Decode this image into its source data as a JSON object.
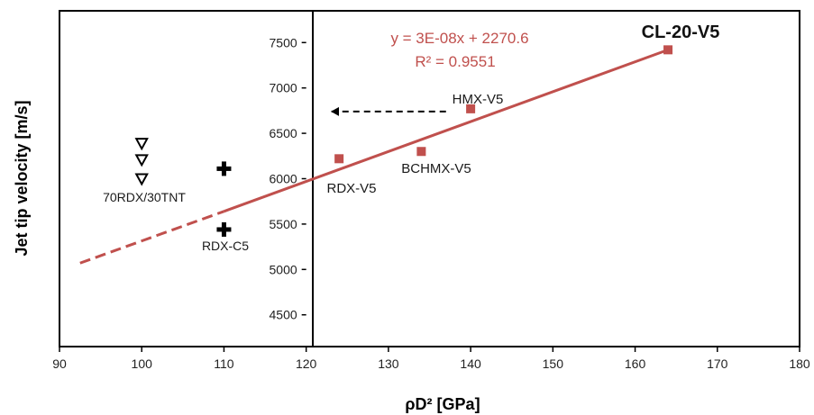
{
  "chart_data": {
    "type": "scatter",
    "title": "",
    "xlabel": "ρD² [GPa]",
    "ylabel": "Jet tip velocity [m/s]",
    "xlim": [
      90,
      180
    ],
    "ylim": [
      4150,
      7850
    ],
    "x_ticks": [
      "90",
      "100",
      "110",
      "120",
      "130",
      "140",
      "150",
      "160",
      "170",
      "180"
    ],
    "y_ticks": [
      "4500",
      "5000",
      "5500",
      "6000",
      "6500",
      "7000",
      "7500"
    ],
    "grid": false,
    "series": [
      {
        "marker": "square",
        "color": "#c0504d",
        "points": [
          {
            "label": "RDX-V5",
            "x": 124,
            "y": 6220
          },
          {
            "label": "BCHMX-V5",
            "x": 134,
            "y": 6300
          },
          {
            "label": "HMX-V5",
            "x": 140,
            "y": 6770
          },
          {
            "label": "CL-20-V5",
            "x": 164,
            "y": 7420
          }
        ]
      },
      {
        "marker": "cross",
        "color": "#000000",
        "points": [
          {
            "x": 110,
            "y": 6110
          },
          {
            "x": 110,
            "y": 5440
          }
        ]
      },
      {
        "marker": "triangle-down",
        "color": "#000000",
        "points": [
          {
            "x": 100,
            "y": 6390
          },
          {
            "x": 100,
            "y": 6210
          },
          {
            "x": 100,
            "y": 6000
          }
        ]
      }
    ],
    "trendline": {
      "equation": "y = 3E-08x + 2270.6",
      "r2": "R² = 0.9551",
      "color": "#c0504d",
      "solid": {
        "x": [
          110,
          164
        ],
        "y": [
          5640,
          7420
        ]
      },
      "dashed": {
        "x": [
          92.5,
          110
        ],
        "y": [
          5070,
          5640
        ]
      }
    },
    "annotations": [
      {
        "text": "CL-20-V5",
        "big": true
      },
      {
        "text": "HMX-V5"
      },
      {
        "text": "BCHMX-V5"
      },
      {
        "text": "RDX-V5"
      },
      {
        "text": "70RDX/30TNT"
      },
      {
        "text": "RDX-C5"
      }
    ],
    "arrow": {
      "from": {
        "x": 137,
        "y": 6740
      },
      "to": {
        "x": 123,
        "y": 6740
      },
      "style": "dashed"
    }
  }
}
